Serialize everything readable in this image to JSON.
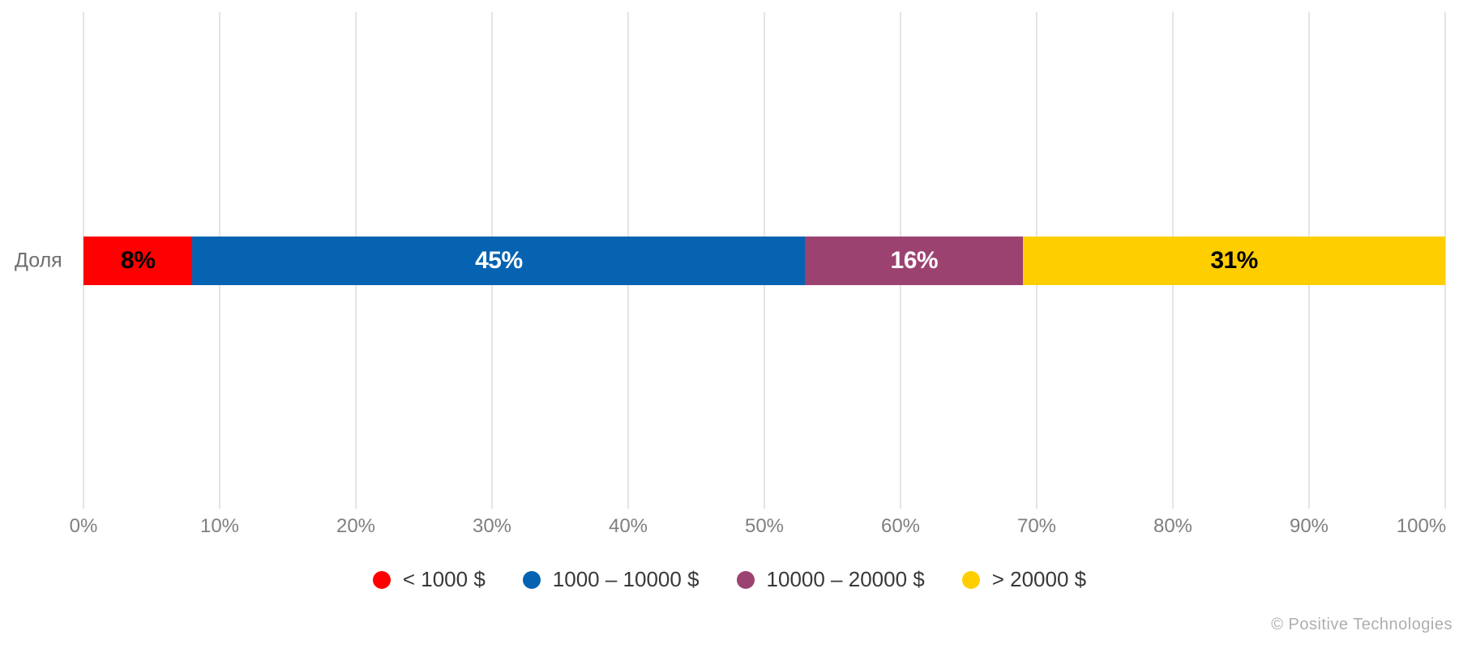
{
  "chart_data": {
    "type": "bar",
    "orientation": "horizontal",
    "stacked": true,
    "title": "",
    "categories": [
      "Доля"
    ],
    "series": [
      {
        "name": "< 1000 $",
        "values": [
          8
        ],
        "data_label": "8%",
        "color": "#ff0000",
        "label_color": "#000000"
      },
      {
        "name": "1000 – 10000 $",
        "values": [
          45
        ],
        "data_label": "45%",
        "color": "#0563b2",
        "label_color": "#ffffff"
      },
      {
        "name": "10000 – 20000 $",
        "values": [
          16
        ],
        "data_label": "16%",
        "color": "#9c4271",
        "label_color": "#ffffff"
      },
      {
        "name": "> 20000 $",
        "values": [
          31
        ],
        "data_label": "31%",
        "color": "#ffce00",
        "label_color": "#000000"
      }
    ],
    "x_axis": {
      "min": 0,
      "max": 100,
      "tick_step": 10,
      "tick_labels": [
        "0%",
        "10%",
        "20%",
        "30%",
        "40%",
        "50%",
        "60%",
        "70%",
        "80%",
        "90%",
        "100%"
      ]
    },
    "grid": true,
    "legend_position": "bottom",
    "gridline_color": "#e4e4e4",
    "axis_text_color": "#7f7f7f"
  },
  "footer": {
    "watermark": "© Positive Technologies"
  }
}
